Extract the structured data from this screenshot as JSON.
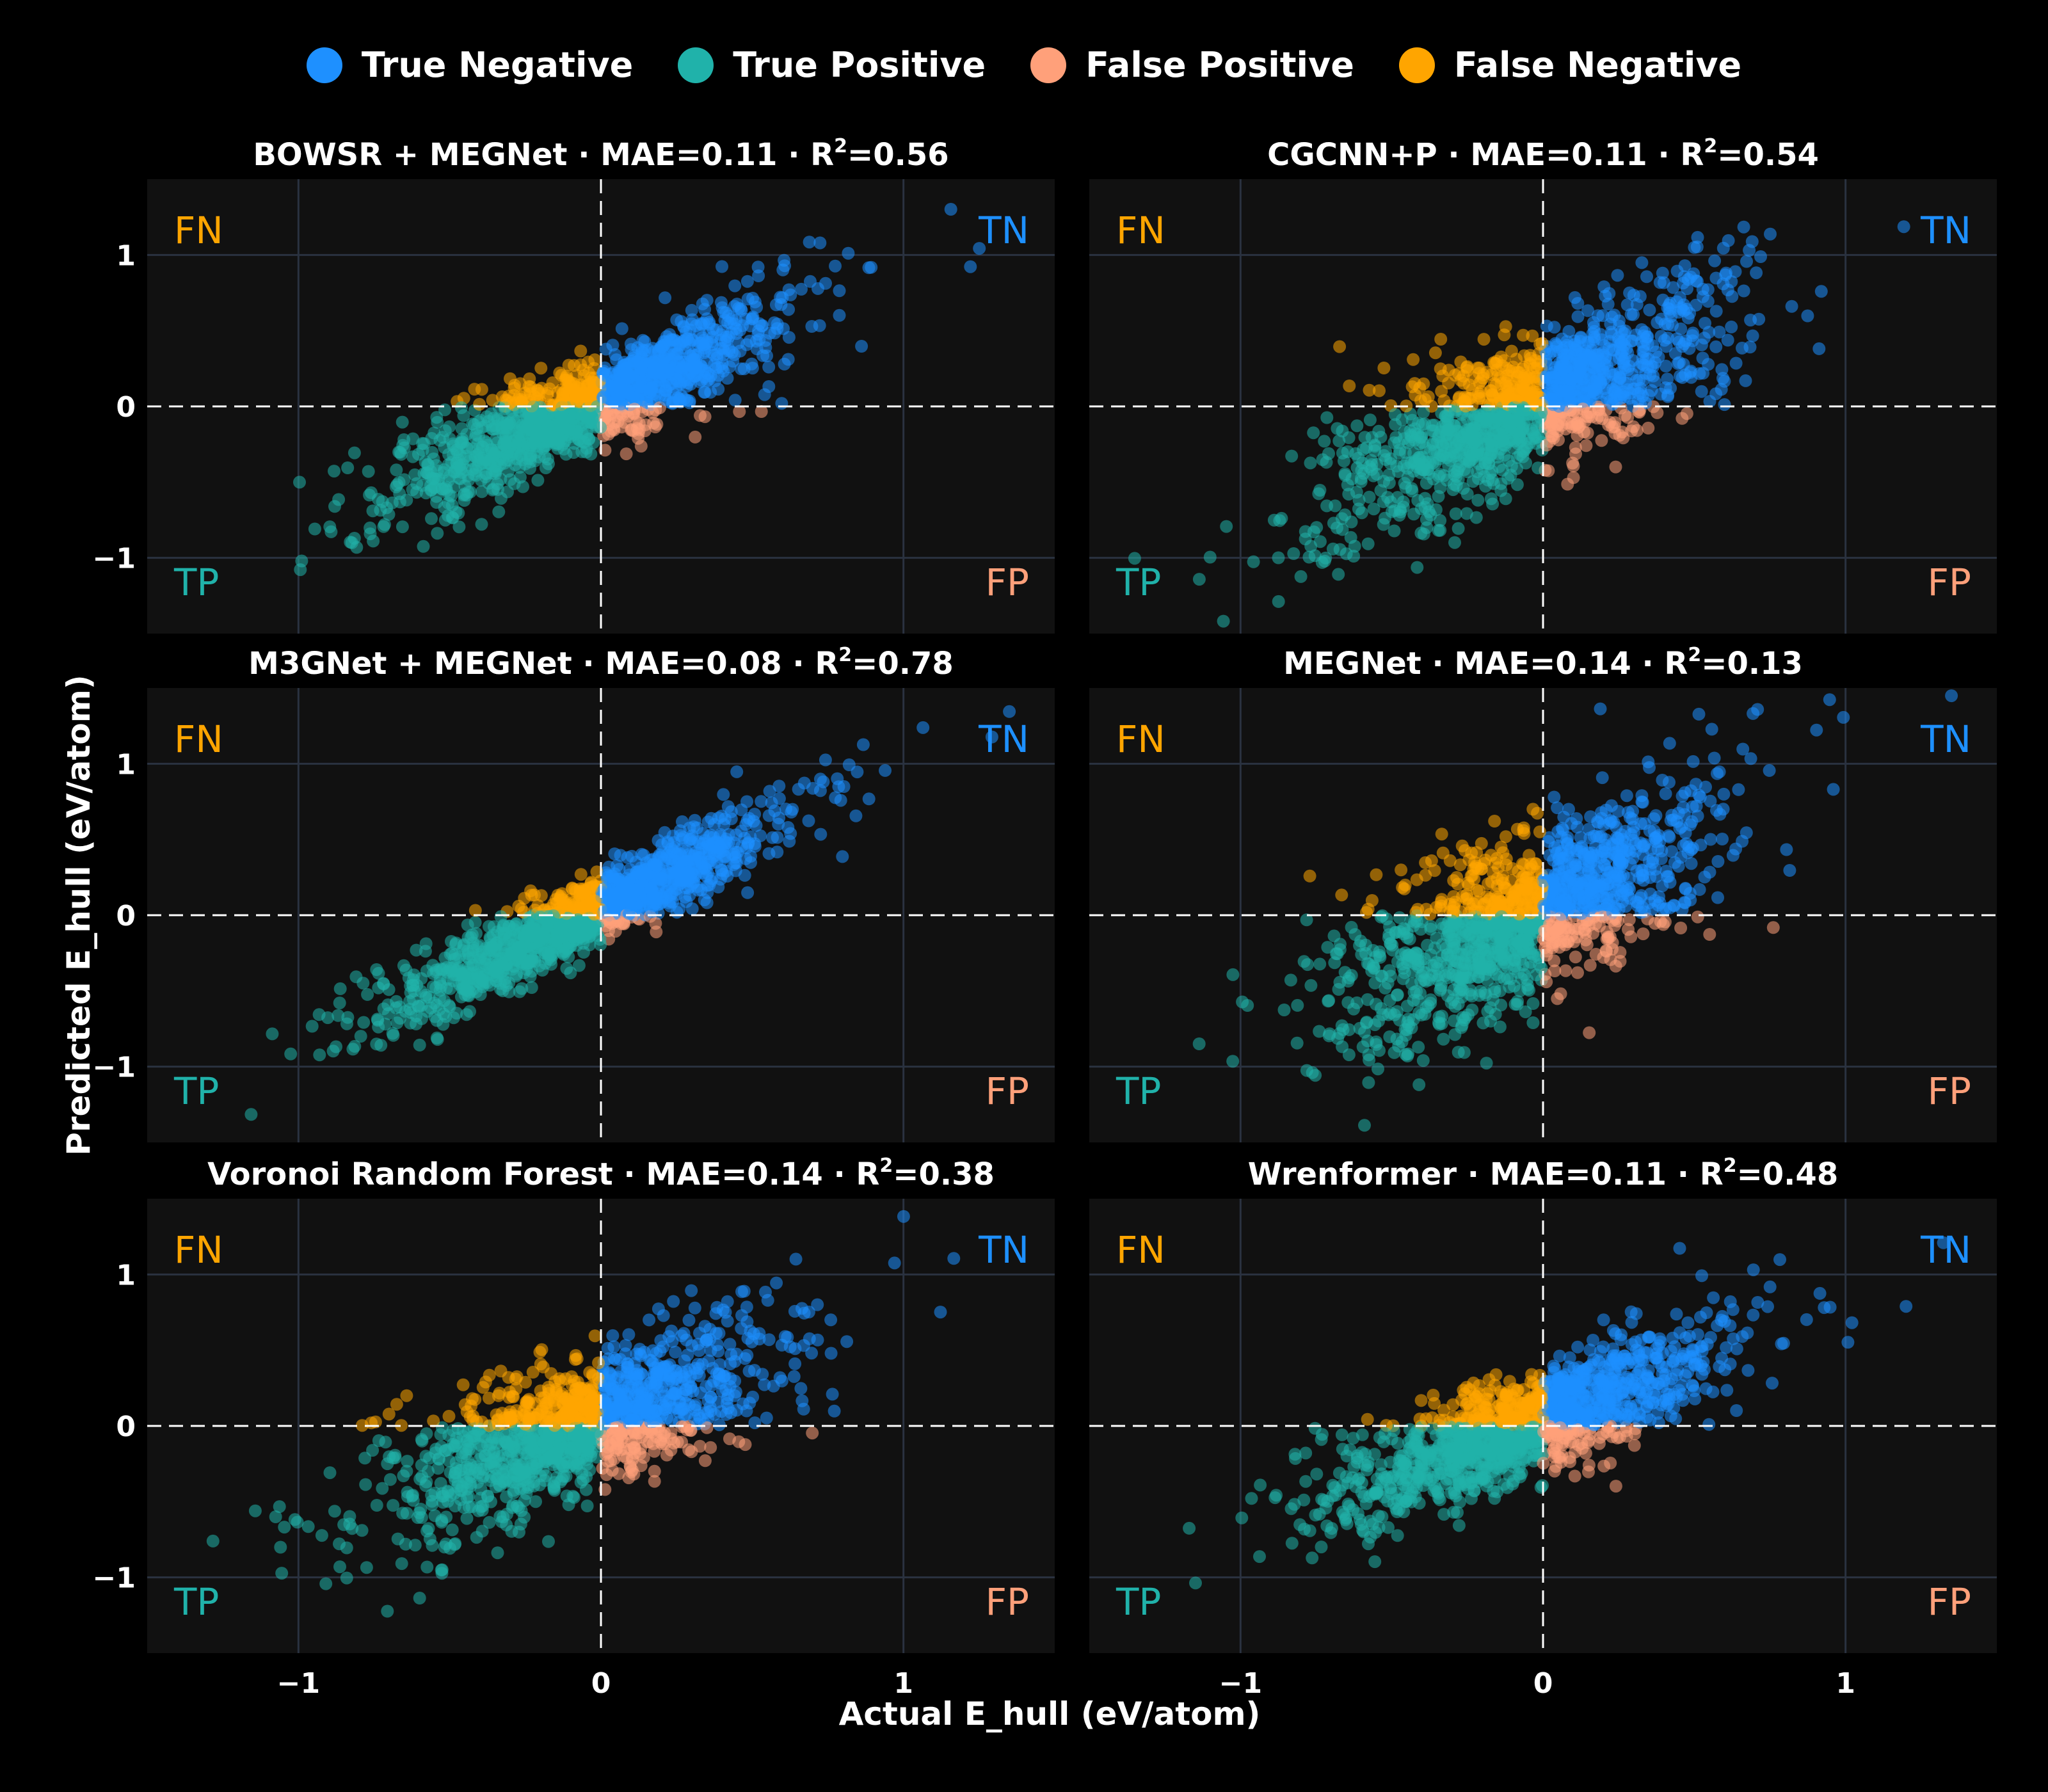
{
  "legend": {
    "tn": "True Negative",
    "tp": "True Positive",
    "fp": "False Positive",
    "fn": "False Negative"
  },
  "colors": {
    "tn": "#1e90ff",
    "tp": "#20b2aa",
    "fp": "#ffa07a",
    "fn": "#ffa500",
    "background": "#000000",
    "panel": "#111111",
    "grid": "#2a3240"
  },
  "xlabel": "Actual E_hull (eV/atom)",
  "ylabel": "Predicted E_hull (eV/atom)",
  "quadrant_labels": {
    "fn": "FN",
    "tn": "TN",
    "tp": "TP",
    "fp": "FP"
  },
  "chart_data": [
    {
      "type": "scatter",
      "title": "BOWSR + MEGNet · MAE=0.11 · R²=0.56",
      "xlim": [
        -1.5,
        1.5
      ],
      "ylim": [
        -1.5,
        1.5
      ],
      "xticks": [
        -1,
        0,
        1
      ],
      "yticks": [
        -1,
        0,
        1
      ],
      "series": [
        "True Negative",
        "True Positive",
        "False Positive",
        "False Negative"
      ],
      "slope": 0.85,
      "spread": 0.22
    },
    {
      "type": "scatter",
      "title": "CGCNN+P · MAE=0.11 · R²=0.54",
      "xlim": [
        -1.5,
        1.5
      ],
      "ylim": [
        -1.5,
        1.5
      ],
      "xticks": [
        -1,
        0,
        1
      ],
      "yticks": [
        -1,
        0,
        1
      ],
      "series": [
        "True Negative",
        "True Positive",
        "False Positive",
        "False Negative"
      ],
      "slope": 0.9,
      "spread": 0.32
    },
    {
      "type": "scatter",
      "title": "M3GNet + MEGNet · MAE=0.08 · R²=0.78",
      "xlim": [
        -1.5,
        1.5
      ],
      "ylim": [
        -1.5,
        1.5
      ],
      "xticks": [
        -1,
        0,
        1
      ],
      "yticks": [
        -1,
        0,
        1
      ],
      "series": [
        "True Negative",
        "True Positive",
        "False Positive",
        "False Negative"
      ],
      "slope": 0.95,
      "spread": 0.17
    },
    {
      "type": "scatter",
      "title": "MEGNet · MAE=0.14 · R²=0.13",
      "xlim": [
        -1.5,
        1.5
      ],
      "ylim": [
        -1.5,
        1.5
      ],
      "xticks": [
        -1,
        0,
        1
      ],
      "yticks": [
        -1,
        0,
        1
      ],
      "series": [
        "True Negative",
        "True Positive",
        "False Positive",
        "False Negative"
      ],
      "slope": 0.9,
      "spread": 0.38
    },
    {
      "type": "scatter",
      "title": "Voronoi Random Forest · MAE=0.14 · R²=0.38",
      "xlim": [
        -1.5,
        1.5
      ],
      "ylim": [
        -1.5,
        1.5
      ],
      "xticks": [
        -1,
        0,
        1
      ],
      "yticks": [
        -1,
        0,
        1
      ],
      "series": [
        "True Negative",
        "True Positive",
        "False Positive",
        "False Negative"
      ],
      "slope": 0.7,
      "spread": 0.3
    },
    {
      "type": "scatter",
      "title": "Wrenformer · MAE=0.11 · R²=0.48",
      "xlim": [
        -1.5,
        1.5
      ],
      "ylim": [
        -1.5,
        1.5
      ],
      "xticks": [
        -1,
        0,
        1
      ],
      "yticks": [
        -1,
        0,
        1
      ],
      "series": [
        "True Negative",
        "True Positive",
        "False Positive",
        "False Negative"
      ],
      "slope": 0.75,
      "spread": 0.25
    }
  ]
}
